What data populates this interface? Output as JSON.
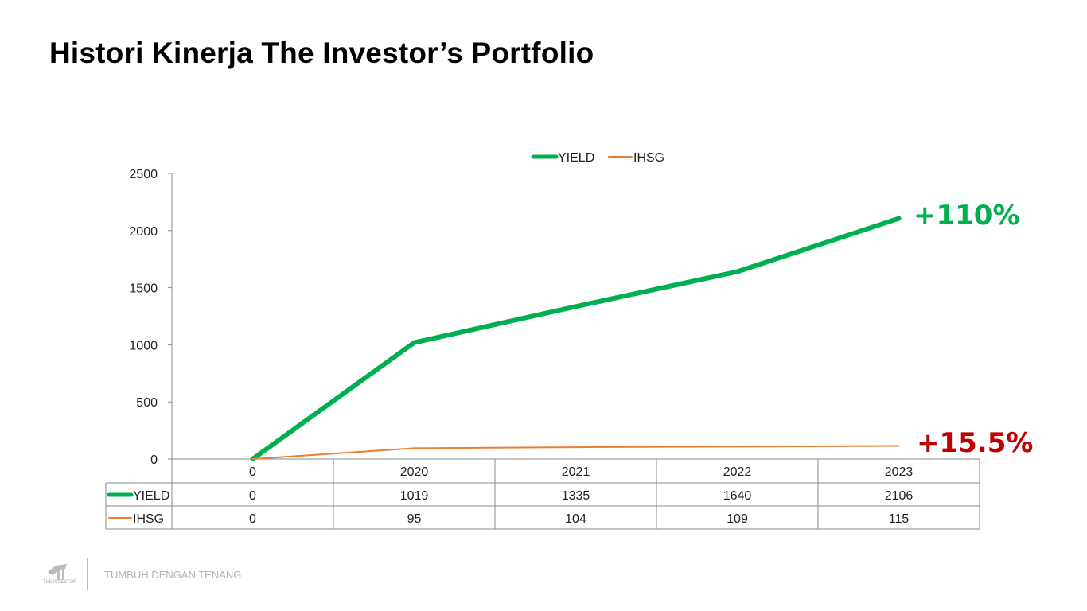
{
  "title": "Histori Kinerja The Investor’s Portfolio",
  "chart_data": {
    "type": "line",
    "categories": [
      "0",
      "2020",
      "2021",
      "2022",
      "2023"
    ],
    "series": [
      {
        "name": "YIELD",
        "values": [
          0,
          1019,
          1335,
          1640,
          2106
        ],
        "color": "#00B050"
      },
      {
        "name": "IHSG",
        "values": [
          0,
          95,
          104,
          109,
          115
        ],
        "color": "#ED7D31"
      }
    ],
    "ylim": [
      0,
      2500
    ],
    "yticks": [
      "0",
      "500",
      "1000",
      "1500",
      "2000",
      "2500"
    ],
    "legend_position": "top",
    "data_table": true,
    "annotations": [
      {
        "text": "+110%",
        "color": "#00B050",
        "series": "YIELD"
      },
      {
        "text": "+15.5%",
        "color": "#C00000",
        "series": "IHSG"
      }
    ]
  },
  "footer": {
    "logo_text": "THE INVESTOR",
    "tagline": "TUMBUH DENGAN TENANG"
  }
}
